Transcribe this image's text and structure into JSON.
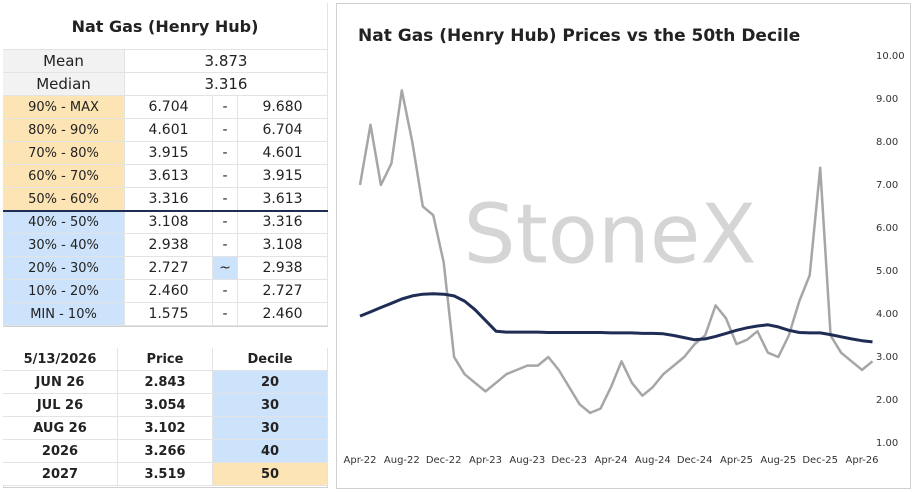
{
  "summary_table": {
    "title": "Nat Gas (Henry Hub)",
    "stats": [
      {
        "label": "Mean",
        "value": "3.873"
      },
      {
        "label": "Median",
        "value": "3.316"
      }
    ],
    "deciles": [
      {
        "label": "90% - MAX",
        "low": "6.704",
        "sep": "-",
        "high": "9.680"
      },
      {
        "label": "80% - 90%",
        "low": "4.601",
        "sep": "-",
        "high": "6.704"
      },
      {
        "label": "70% - 80%",
        "low": "3.915",
        "sep": "-",
        "high": "4.601"
      },
      {
        "label": "60% - 70%",
        "low": "3.613",
        "sep": "-",
        "high": "3.915"
      },
      {
        "label": "50% - 60%",
        "low": "3.316",
        "sep": "-",
        "high": "3.613"
      },
      {
        "label": "40% - 50%",
        "low": "3.108",
        "sep": "-",
        "high": "3.316"
      },
      {
        "label": "30% - 40%",
        "low": "2.938",
        "sep": "-",
        "high": "3.108"
      },
      {
        "label": "20% - 30%",
        "low": "2.727",
        "sep": "~",
        "high": "2.938"
      },
      {
        "label": "10% - 20%",
        "low": "2.460",
        "sep": "-",
        "high": "2.727"
      },
      {
        "label": "MIN - 10%",
        "low": "1.575",
        "sep": "-",
        "high": "2.460"
      }
    ]
  },
  "contracts_table": {
    "header": [
      "5/13/2026",
      "Price",
      "Decile"
    ],
    "rows": [
      [
        "JUN 26",
        "2.843",
        "20"
      ],
      [
        "JUL 26",
        "3.054",
        "30"
      ],
      [
        "AUG 26",
        "3.102",
        "30"
      ],
      [
        "2026",
        "3.266",
        "40"
      ],
      [
        "2027",
        "3.519",
        "50"
      ]
    ]
  },
  "chart_data": {
    "type": "line",
    "title": "Nat Gas (Henry Hub) Prices vs the 50th Decile",
    "watermark": "StoneX",
    "categories": [
      "Apr-22",
      null,
      null,
      null,
      "Aug-22",
      null,
      null,
      null,
      "Dec-22",
      null,
      null,
      null,
      "Apr-23",
      null,
      null,
      null,
      "Aug-23",
      null,
      null,
      null,
      "Dec-23",
      null,
      null,
      null,
      "Apr-24",
      null,
      null,
      null,
      "Aug-24",
      null,
      null,
      null,
      "Dec-24",
      null,
      null,
      null,
      "Apr-25",
      null,
      null,
      null,
      "Aug-25",
      null,
      null,
      null,
      "Dec-25",
      null,
      null,
      null,
      "Apr-26",
      null
    ],
    "series": [
      {
        "color": "#a6a6a6",
        "values": [
          7.0,
          8.4,
          7.0,
          7.5,
          9.2,
          8.0,
          6.5,
          6.3,
          5.2,
          3.0,
          2.6,
          2.4,
          2.2,
          2.4,
          2.6,
          2.7,
          2.8,
          2.8,
          3.0,
          2.7,
          2.3,
          1.9,
          1.7,
          1.8,
          2.3,
          2.9,
          2.4,
          2.1,
          2.3,
          2.6,
          2.8,
          3.0,
          3.3,
          3.5,
          4.2,
          3.9,
          3.3,
          3.4,
          3.6,
          3.1,
          3.0,
          3.5,
          4.3,
          4.9,
          7.4,
          3.5,
          3.1,
          2.9,
          2.7,
          2.9
        ]
      },
      {
        "color": "#1f2d55",
        "values": [
          3.95,
          4.05,
          4.15,
          4.25,
          4.35,
          4.42,
          4.46,
          4.47,
          4.46,
          4.42,
          4.3,
          4.1,
          3.85,
          3.6,
          3.58,
          3.58,
          3.58,
          3.58,
          3.57,
          3.57,
          3.57,
          3.57,
          3.57,
          3.57,
          3.56,
          3.56,
          3.56,
          3.55,
          3.55,
          3.54,
          3.5,
          3.45,
          3.4,
          3.42,
          3.48,
          3.55,
          3.62,
          3.68,
          3.72,
          3.75,
          3.7,
          3.62,
          3.57,
          3.56,
          3.56,
          3.52,
          3.47,
          3.42,
          3.38,
          3.35
        ]
      }
    ],
    "ylim": [
      1,
      10
    ],
    "yticks": [
      {
        "value": 1,
        "label": "1.00"
      },
      {
        "value": 2,
        "label": "2.00"
      },
      {
        "value": 3,
        "label": "3.00"
      },
      {
        "value": 4,
        "label": "4.00"
      },
      {
        "value": 5,
        "label": "5.00"
      },
      {
        "value": 6,
        "label": "6.00"
      },
      {
        "value": 7,
        "label": "7.00"
      },
      {
        "value": 8,
        "label": "8.00"
      },
      {
        "value": 9,
        "label": "9.00"
      },
      {
        "value": 10,
        "label": "10.00"
      }
    ]
  }
}
